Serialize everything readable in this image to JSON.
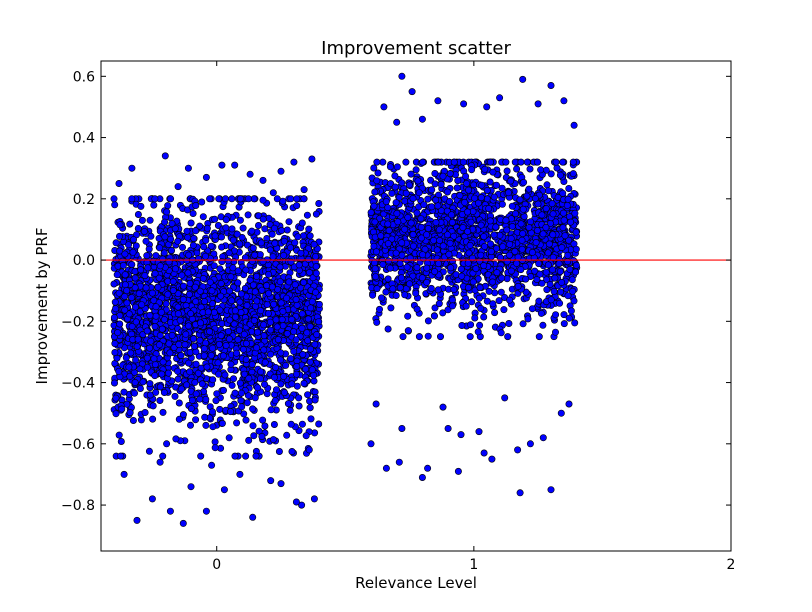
{
  "chart_data": {
    "type": "scatter",
    "title": "Improvement scatter",
    "xlabel": "Relevance Level",
    "ylabel": "Improvement by PRF",
    "xlim": [
      -0.45,
      2.0
    ],
    "ylim": [
      -0.95,
      0.65
    ],
    "xticks": [
      0,
      1,
      2
    ],
    "xtick_labels": [
      "0",
      "1",
      "2"
    ],
    "yticks": [
      0.6,
      0.4,
      0.2,
      0.0,
      -0.2,
      -0.4,
      -0.6,
      -0.8
    ],
    "ytick_labels": [
      "0.6",
      "0.4",
      "0.2",
      "0.0",
      "−0.2",
      "−0.4",
      "−0.6",
      "−0.8"
    ],
    "grid": false,
    "reference_line": {
      "y": 0.0,
      "color": "#ff0000"
    },
    "colors": {
      "marker_fill": "#0000ff",
      "marker_edge": "#000000"
    },
    "series": [
      {
        "category": 0,
        "jitter_range": [
          -0.4,
          0.4
        ],
        "points": [
          [
            -0.31,
            -0.85
          ],
          [
            -0.13,
            -0.86
          ],
          [
            -0.04,
            -0.82
          ],
          [
            0.14,
            -0.84
          ],
          [
            0.33,
            -0.8
          ],
          [
            0.38,
            -0.78
          ],
          [
            -0.18,
            -0.82
          ],
          [
            -0.25,
            -0.78
          ],
          [
            0.03,
            -0.75
          ],
          [
            -0.36,
            -0.7
          ],
          [
            0.25,
            -0.73
          ],
          [
            0.31,
            -0.79
          ],
          [
            -0.22,
            -0.66
          ],
          [
            0.09,
            -0.7
          ],
          [
            -0.02,
            -0.67
          ],
          [
            0.21,
            -0.72
          ],
          [
            -0.1,
            -0.74
          ],
          [
            0.36,
            -0.62
          ],
          [
            -0.27,
            -0.32
          ],
          [
            -0.2,
            0.34
          ],
          [
            0.02,
            0.31
          ],
          [
            0.3,
            0.32
          ],
          [
            0.37,
            0.33
          ],
          [
            0.13,
            0.28
          ],
          [
            -0.33,
            0.3
          ],
          [
            -0.11,
            0.3
          ],
          [
            0.25,
            0.29
          ],
          [
            0.18,
            0.26
          ],
          [
            -0.04,
            0.27
          ],
          [
            0.07,
            0.31
          ],
          [
            -0.38,
            0.25
          ],
          [
            0.34,
            0.23
          ],
          [
            -0.15,
            0.24
          ],
          [
            0.22,
            0.22
          ]
        ]
      },
      {
        "category": 1,
        "jitter_range": [
          0.6,
          1.4
        ],
        "points": [
          [
            0.72,
            0.6
          ],
          [
            1.19,
            0.59
          ],
          [
            0.76,
            0.55
          ],
          [
            1.3,
            0.57
          ],
          [
            0.86,
            0.52
          ],
          [
            0.96,
            0.51
          ],
          [
            1.1,
            0.53
          ],
          [
            1.35,
            0.52
          ],
          [
            0.65,
            0.5
          ],
          [
            1.25,
            0.51
          ],
          [
            1.05,
            0.5
          ],
          [
            1.39,
            0.44
          ],
          [
            0.7,
            0.45
          ],
          [
            0.8,
            0.46
          ],
          [
            1.18,
            -0.76
          ],
          [
            1.3,
            -0.75
          ],
          [
            0.8,
            -0.71
          ],
          [
            0.82,
            -0.68
          ],
          [
            0.66,
            -0.68
          ],
          [
            0.71,
            -0.66
          ],
          [
            0.94,
            -0.69
          ],
          [
            1.07,
            -0.65
          ],
          [
            1.04,
            -0.63
          ],
          [
            1.17,
            -0.62
          ],
          [
            0.6,
            -0.6
          ],
          [
            1.22,
            -0.6
          ],
          [
            0.95,
            -0.57
          ],
          [
            1.02,
            -0.56
          ],
          [
            0.72,
            -0.55
          ],
          [
            1.27,
            -0.58
          ],
          [
            0.9,
            -0.55
          ],
          [
            1.34,
            -0.5
          ],
          [
            1.37,
            -0.47
          ],
          [
            1.12,
            -0.45
          ],
          [
            0.62,
            -0.47
          ],
          [
            0.88,
            -0.48
          ]
        ]
      }
    ]
  }
}
